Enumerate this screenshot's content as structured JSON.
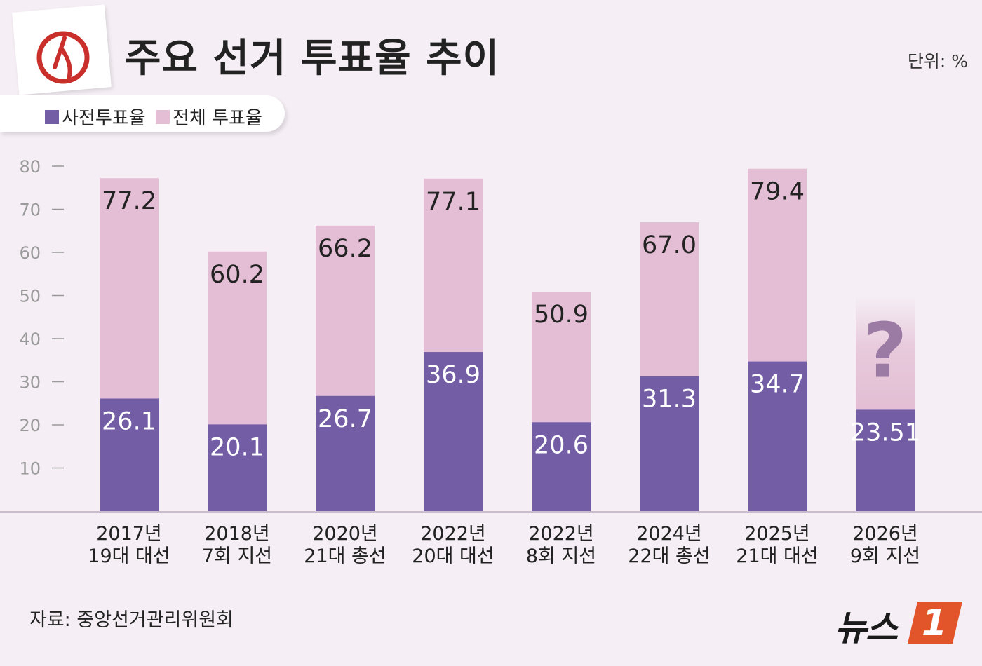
{
  "header": {
    "title": "주요 선거 투표율 추이",
    "unit": "단위: %"
  },
  "legend": {
    "items": [
      {
        "label": "사전투표율",
        "color": "#735ea6"
      },
      {
        "label": "전체 투표율",
        "color": "#e3bed4"
      }
    ]
  },
  "footer": {
    "source": "자료: 중앙선거관리위원회",
    "brand": "뉴스",
    "brand_number": "1"
  },
  "colors": {
    "background": "#f5eff5",
    "early_vote": "#735ea6",
    "total_vote": "#e3bed4",
    "brand_accent": "#e2552a"
  },
  "chart_data": {
    "type": "bar",
    "stacking": "overlay",
    "categories": [
      [
        "2017년",
        "19대 대선"
      ],
      [
        "2018년",
        "7회 지선"
      ],
      [
        "2020년",
        "21대 총선"
      ],
      [
        "2022년",
        "20대 대선"
      ],
      [
        "2022년",
        "8회 지선"
      ],
      [
        "2024년",
        "22대 총선"
      ],
      [
        "2025년",
        "21대 대선"
      ],
      [
        "2026년",
        "9회 지선"
      ]
    ],
    "series": [
      {
        "name": "전체 투표율",
        "values": [
          77.2,
          60.2,
          66.2,
          77.1,
          50.9,
          67.0,
          79.4,
          null
        ],
        "labels": [
          "77.2",
          "60.2",
          "66.2",
          "77.1",
          "50.9",
          "67.0",
          "79.4",
          "?"
        ]
      },
      {
        "name": "사전투표율",
        "values": [
          26.1,
          20.1,
          26.7,
          36.9,
          20.6,
          31.3,
          34.7,
          23.51
        ],
        "labels": [
          "26.1",
          "20.1",
          "26.7",
          "36.9",
          "20.6",
          "31.3",
          "34.7",
          "23.51"
        ]
      }
    ],
    "yticks": [
      "10",
      "20",
      "30",
      "40",
      "50",
      "60",
      "70",
      "80"
    ],
    "ylim": [
      0,
      80
    ],
    "unknown_marker": "?",
    "grid": false,
    "legend_position": "top-left"
  }
}
